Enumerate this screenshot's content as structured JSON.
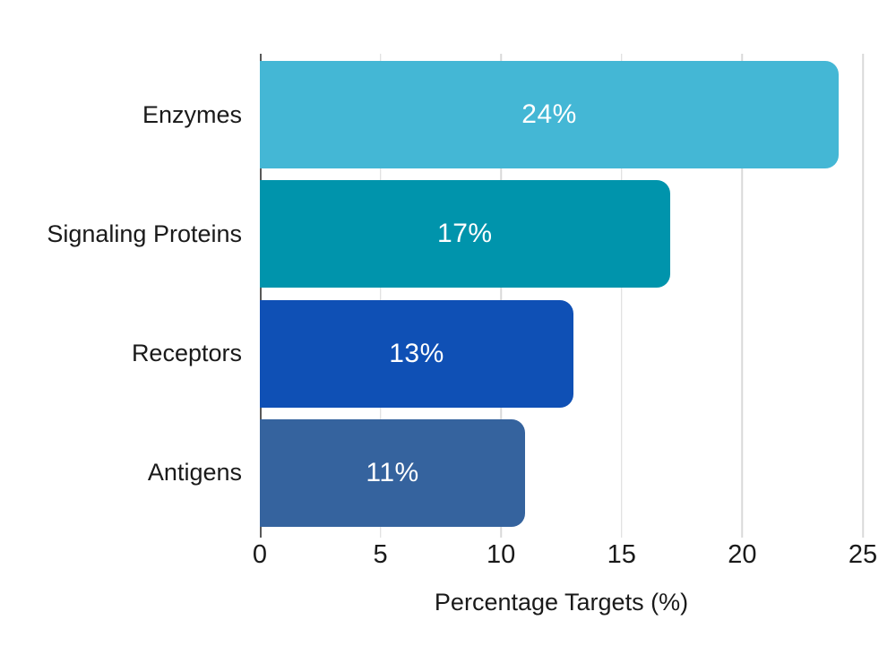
{
  "chart_data": {
    "type": "bar",
    "orientation": "horizontal",
    "title": "",
    "categories": [
      "Enzymes",
      "Signaling Proteins",
      "Receptors",
      "Antigens"
    ],
    "values": [
      24,
      17,
      13,
      11
    ],
    "value_labels": [
      "24%",
      "17%",
      "13%",
      "11%"
    ],
    "bar_colors": [
      "#44B7D5",
      "#0094AC",
      "#0F50B5",
      "#35639E"
    ],
    "xlabel": "Percentage Targets (%)",
    "ylabel": "",
    "xlim": [
      0,
      25
    ],
    "xticks": [
      0,
      5,
      10,
      15,
      20,
      25
    ],
    "grid": "vertical-gridlines-at-xticks",
    "legend": "none",
    "colors": {
      "background": "#FFFFFF",
      "gridline": "#D9D9D9",
      "axis_line": "#595959",
      "value_label_text": "#FFFFFF",
      "axis_text": "#1A1A1A"
    }
  }
}
